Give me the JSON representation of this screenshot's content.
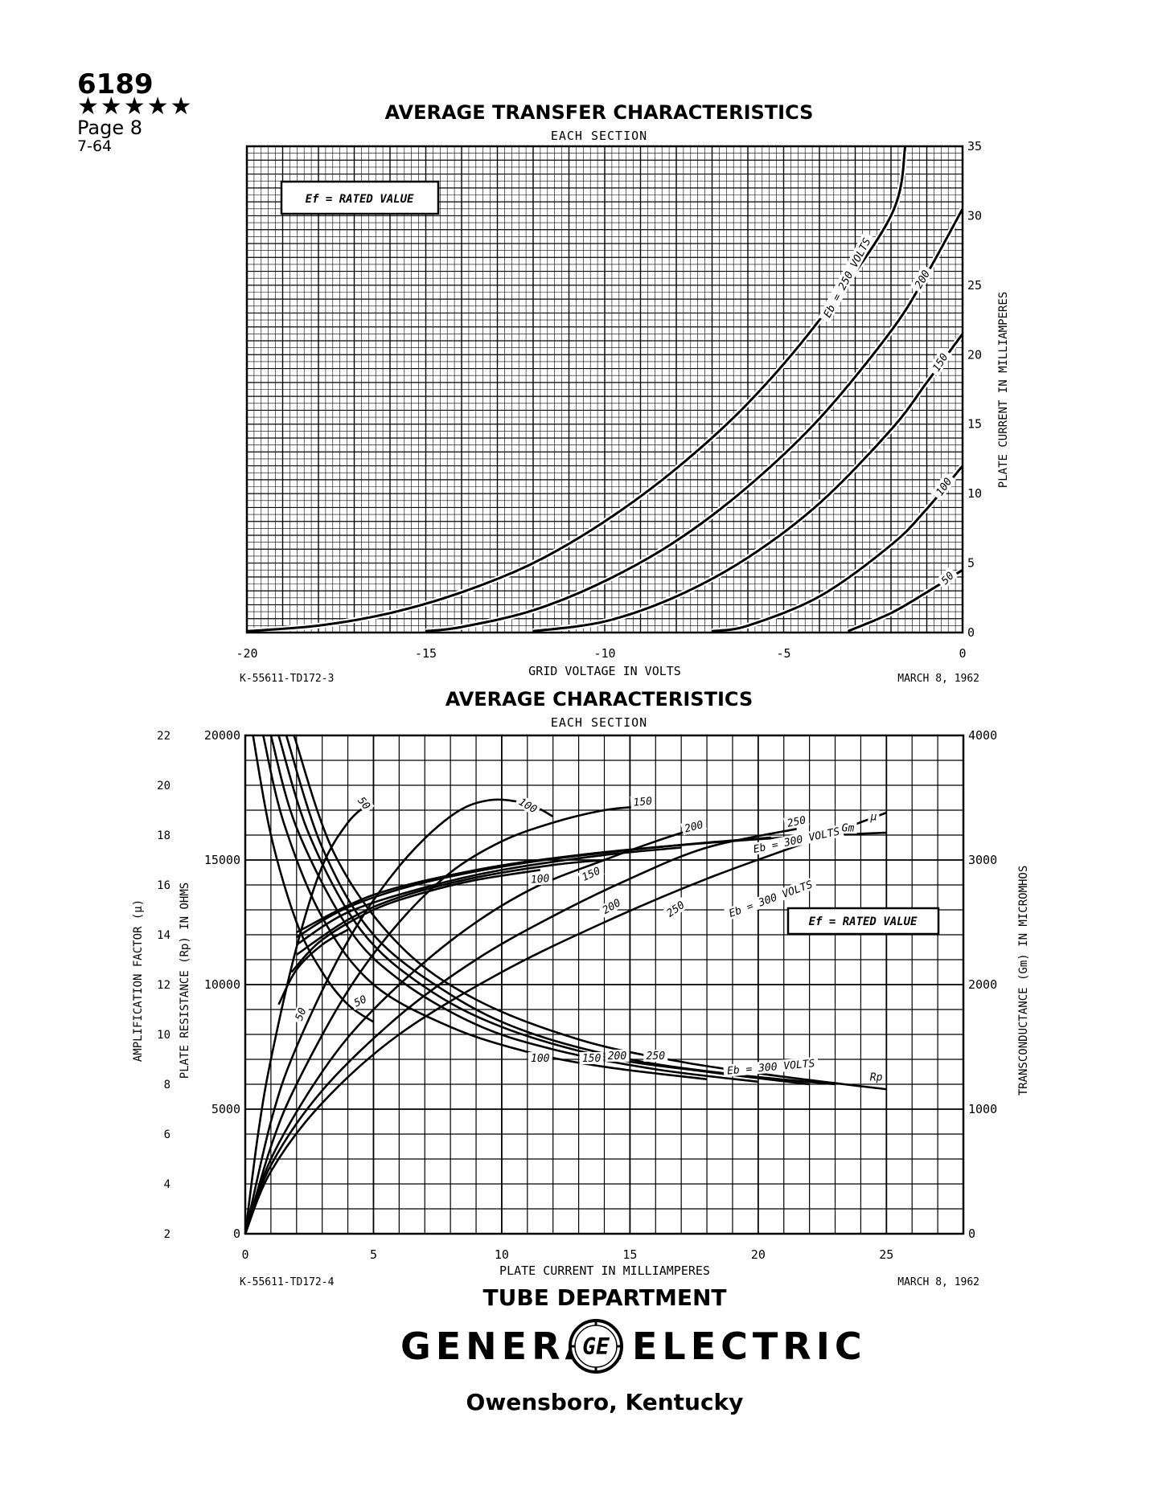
{
  "header": {
    "tube_number": "6189",
    "stars": "★★★★★",
    "page": "Page 8",
    "date_code": "7-64"
  },
  "footer": {
    "department": "TUBE DEPARTMENT",
    "brand_left": "GENERAL",
    "brand_right": "ELECTRIC",
    "logo_monogram": "GE",
    "location": "Owensboro, Kentucky",
    "logo_icon": "ge-monogram-icon"
  },
  "colors": {
    "ink": "#000000",
    "paper": "#ffffff"
  },
  "chart_data": [
    {
      "type": "line",
      "title": "AVERAGE TRANSFER CHARACTERISTICS",
      "subtitle": "EACH SECTION",
      "xlabel": "GRID VOLTAGE IN VOLTS",
      "ylabel": "PLATE CURRENT IN MILLIAMPERES",
      "xlim": [
        -20,
        0
      ],
      "ylim": [
        0,
        35
      ],
      "x_ticks": [
        "-20",
        "-15",
        "-10",
        "-5",
        "0"
      ],
      "y_ticks": [
        "0",
        "5",
        "10",
        "15",
        "20",
        "25",
        "30",
        "35"
      ],
      "grid": true,
      "annotation": "Ef = RATED VALUE",
      "drawing_number": "K-55611-TD172-3",
      "drawing_date": "MARCH 8, 1962",
      "series": [
        {
          "name": "Eb = 250 VOLTS",
          "label": "Eb = 250 VOLTS",
          "x": [
            -20,
            -18,
            -16,
            -14,
            -12,
            -10,
            -8,
            -6,
            -4,
            -2,
            -1.6
          ],
          "y": [
            0.1,
            0.5,
            1.4,
            2.9,
            5.0,
            8.0,
            11.8,
            16.5,
            22.5,
            30.0,
            35.0
          ]
        },
        {
          "name": "200",
          "label": "200",
          "x": [
            -15,
            -14,
            -12,
            -10,
            -8,
            -6,
            -4,
            -2,
            -1,
            0
          ],
          "y": [
            0.1,
            0.4,
            1.6,
            3.7,
            6.6,
            10.5,
            15.4,
            21.7,
            25.8,
            30.5
          ]
        },
        {
          "name": "150",
          "label": "150",
          "x": [
            -12,
            -10,
            -8,
            -6,
            -4,
            -2,
            -1,
            0
          ],
          "y": [
            0.1,
            0.8,
            2.6,
            5.4,
            9.3,
            14.6,
            18.0,
            21.5
          ]
        },
        {
          "name": "100",
          "label": "100",
          "x": [
            -7,
            -6,
            -4,
            -2,
            -1,
            0
          ],
          "y": [
            0.1,
            0.5,
            2.6,
            6.3,
            8.9,
            12.0
          ]
        },
        {
          "name": "50",
          "label": "50",
          "x": [
            -3.2,
            -2,
            -1,
            0
          ],
          "y": [
            0.1,
            1.4,
            2.9,
            4.5
          ]
        }
      ]
    },
    {
      "type": "line",
      "title": "AVERAGE CHARACTERISTICS",
      "subtitle": "EACH SECTION",
      "xlabel": "PLATE CURRENT IN MILLIAMPERES",
      "ylabel_left_outer": "AMPLIFICATION FACTOR (μ)",
      "ylabel_left_inner": "PLATE RESISTANCE (Rp) IN OHMS",
      "ylabel_right": "TRANSCONDUCTANCE (Gm) IN MICROMHOS",
      "xlim": [
        0,
        28
      ],
      "ylim_rp": [
        0,
        20000
      ],
      "ylim_mu": [
        2,
        22
      ],
      "ylim_gm": [
        0,
        4000
      ],
      "x_ticks": [
        "0",
        "5",
        "10",
        "15",
        "20",
        "25"
      ],
      "rp_ticks": [
        "0",
        "5000",
        "10000",
        "15000",
        "20000"
      ],
      "mu_ticks": [
        "2",
        "4",
        "6",
        "8",
        "10",
        "12",
        "14",
        "16",
        "18",
        "20",
        "22"
      ],
      "gm_ticks": [
        "0",
        "1000",
        "2000",
        "3000",
        "4000"
      ],
      "grid": true,
      "annotation": "Ef = RATED VALUE",
      "drawing_number": "K-55611-TD172-4",
      "drawing_date": "MARCH 8, 1962",
      "curve_labels": {
        "mu": [
          "50",
          "100",
          "150",
          "200",
          "250",
          "Eb = 300 VOLTS",
          "μ"
        ],
        "gm": [
          "50",
          "100",
          "150",
          "200",
          "250",
          "Eb = 300 VOLTS",
          "Gm"
        ],
        "rp": [
          "50",
          "100",
          "150",
          "200",
          "250",
          "Eb = 300 VOLTS",
          "Rp"
        ]
      },
      "gm_series": [
        {
          "name": "50",
          "x": [
            0,
            0.5,
            1,
            2,
            3,
            4,
            4.8
          ],
          "y": [
            0,
            800,
            1400,
            2300,
            2950,
            3300,
            3450
          ]
        },
        {
          "name": "100",
          "x": [
            0,
            1,
            2,
            4,
            6,
            8,
            9.5,
            11,
            12
          ],
          "y": [
            0,
            900,
            1500,
            2350,
            2950,
            3350,
            3480,
            3450,
            3350
          ]
        },
        {
          "name": "150",
          "x": [
            0,
            1,
            2,
            4,
            6,
            8,
            10,
            12,
            14,
            15.5
          ],
          "y": [
            0,
            700,
            1200,
            1950,
            2500,
            2900,
            3150,
            3300,
            3400,
            3430
          ]
        },
        {
          "name": "200",
          "x": [
            0,
            1,
            3,
            5,
            8,
            11,
            14,
            16,
            17.5
          ],
          "y": [
            0,
            600,
            1300,
            1800,
            2350,
            2750,
            3000,
            3150,
            3250
          ]
        },
        {
          "name": "250",
          "x": [
            0,
            1,
            3,
            6,
            9,
            12,
            15,
            18,
            21.5
          ],
          "y": [
            0,
            550,
            1150,
            1750,
            2200,
            2550,
            2850,
            3100,
            3250
          ]
        },
        {
          "name": "Eb = 300 VOLTS",
          "x": [
            0,
            1,
            3,
            6,
            10,
            14,
            18,
            22,
            25
          ],
          "y": [
            0,
            500,
            1050,
            1600,
            2100,
            2500,
            2850,
            3150,
            3380
          ]
        }
      ],
      "mu_series": [
        {
          "name": "50",
          "x": [
            1.3,
            2,
            3,
            4
          ],
          "y": [
            11.2,
            12.6,
            13.6,
            14.2
          ]
        },
        {
          "name": "100",
          "x": [
            1.8,
            3,
            5,
            7,
            9,
            11.5
          ],
          "y": [
            12.5,
            13.8,
            15.0,
            15.7,
            16.2,
            16.6
          ]
        },
        {
          "name": "150",
          "x": [
            2,
            4,
            6,
            9,
            12,
            14
          ],
          "y": [
            13.2,
            14.6,
            15.5,
            16.3,
            16.8,
            17.0
          ]
        },
        {
          "name": "200",
          "x": [
            2,
            4,
            7,
            10,
            14,
            17
          ],
          "y": [
            13.6,
            14.9,
            15.9,
            16.6,
            17.2,
            17.5
          ]
        },
        {
          "name": "250",
          "x": [
            2,
            4,
            7,
            11,
            15,
            18,
            20.5
          ],
          "y": [
            13.9,
            15.1,
            16.1,
            16.9,
            17.4,
            17.7,
            17.9
          ]
        },
        {
          "name": "Eb = 300 VOLTS",
          "x": [
            2,
            5,
            9,
            13,
            17,
            21,
            25
          ],
          "y": [
            14.1,
            15.6,
            16.6,
            17.2,
            17.6,
            17.9,
            18.1
          ]
        }
      ],
      "rp_series": [
        {
          "name": "50",
          "x": [
            0.3,
            1,
            2,
            3,
            4,
            5
          ],
          "y": [
            20000,
            16000,
            12500,
            10500,
            9200,
            8500
          ]
        },
        {
          "name": "100",
          "x": [
            0.7,
            1.5,
            3,
            5,
            8,
            11,
            14,
            18
          ],
          "y": [
            20000,
            16500,
            12700,
            10000,
            8300,
            7300,
            6700,
            6200
          ]
        },
        {
          "name": "150",
          "x": [
            1,
            2,
            4,
            6,
            9,
            12,
            16,
            20
          ],
          "y": [
            20000,
            16300,
            12300,
            10200,
            8400,
            7400,
            6600,
            6100
          ]
        },
        {
          "name": "200",
          "x": [
            1.3,
            2.5,
            4.5,
            7,
            10,
            14,
            18,
            22
          ],
          "y": [
            20000,
            16000,
            12200,
            9900,
            8300,
            7100,
            6500,
            6000
          ]
        },
        {
          "name": "250",
          "x": [
            1.6,
            3,
            5,
            8,
            11,
            15,
            19,
            23
          ],
          "y": [
            20000,
            15500,
            12000,
            9600,
            8100,
            7000,
            6400,
            6000
          ]
        },
        {
          "name": "Eb = 300 VOLTS",
          "x": [
            1.9,
            3.5,
            6,
            9,
            13,
            17,
            21,
            25
          ],
          "y": [
            20000,
            15200,
            11600,
            9400,
            7800,
            6900,
            6300,
            5800
          ]
        }
      ]
    }
  ]
}
